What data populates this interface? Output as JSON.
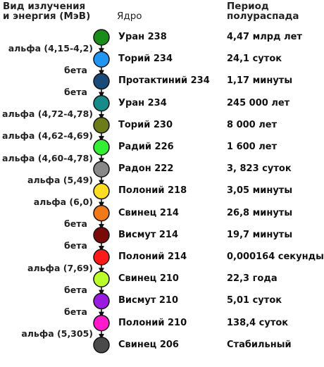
{
  "header": {
    "decay_type_line1": "Вид излучения",
    "decay_type_line2": "и энергия (МэВ)",
    "nucleus": "Ядро",
    "half_life_line1": "Период",
    "half_life_line2": "полураспада"
  },
  "chain": [
    {
      "name": "Уран 238",
      "half_life": "4,47 млрд лет",
      "color": "#1a8c1a"
    },
    {
      "name": "Торий 234",
      "half_life": "24,1 суток",
      "color": "#2196f3"
    },
    {
      "name": "Протактиний 234",
      "half_life": "1,17 минуты",
      "color": "#1a4a7a"
    },
    {
      "name": "Уран 234",
      "half_life": "245 000 лет",
      "color": "#178a8a"
    },
    {
      "name": "Торий 230",
      "half_life": "8 000 лет",
      "color": "#6b7d1a"
    },
    {
      "name": "Радий 226",
      "half_life": "1 600 лет",
      "color": "#33ee33"
    },
    {
      "name": "Радон 222",
      "half_life": "3, 823 суток",
      "color": "#888888"
    },
    {
      "name": "Полоний 218",
      "half_life": "3,05 минуты",
      "color": "#ffdd22"
    },
    {
      "name": "Свинец 214",
      "half_life": "26,8 минуты",
      "color": "#f07a1a"
    },
    {
      "name": "Висмут 214",
      "half_life": "19,7 минуты",
      "color": "#7a0a0a"
    },
    {
      "name": "Полоний 214",
      "half_life": "0,000164 секунды",
      "color": "#ff1a1a"
    },
    {
      "name": "Свинец 210",
      "half_life": "22,3 года",
      "color": "#bbff2a"
    },
    {
      "name": "Висмут 210",
      "half_life": "5,01 суток",
      "color": "#9a1ae0"
    },
    {
      "name": "Полоний 210",
      "half_life": "138,4 суток",
      "color": "#ff1acc"
    },
    {
      "name": "Свинец 206",
      "half_life": "Стабильный",
      "color": "#4a4a4a"
    }
  ],
  "decays": [
    "альфа (4,15-4,2)",
    "бета",
    "бета",
    "альфа (4,72-4,78)",
    "альфа (4,62-4,69)",
    "альфа (4,60-4,78)",
    "альфа (5,49)",
    "альфа (6,0)",
    "бета",
    "бета",
    "альфа (7,69)",
    "бета",
    "бета",
    "альфа (5,305)"
  ]
}
